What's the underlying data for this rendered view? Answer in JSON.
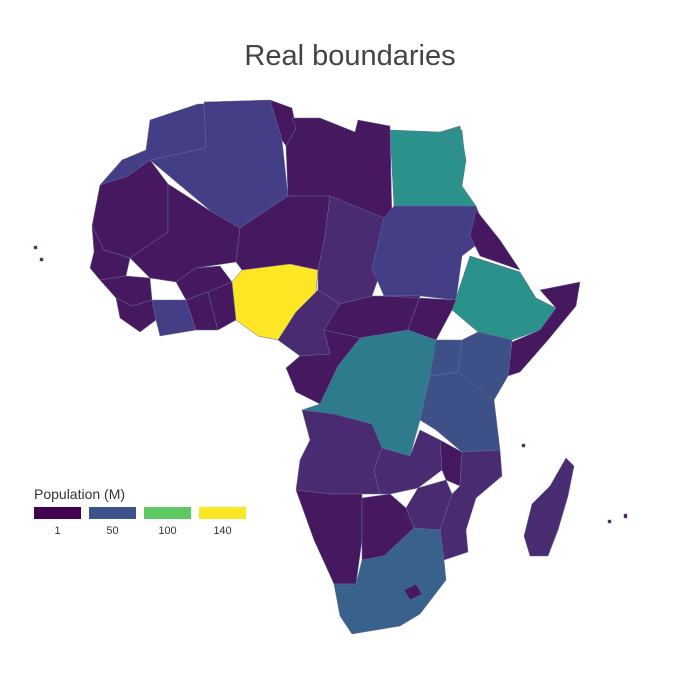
{
  "title": "Real boundaries",
  "legend": {
    "title": "Population (M)",
    "items": [
      {
        "label": "1",
        "color": "#440154"
      },
      {
        "label": "50",
        "color": "#3b528b"
      },
      {
        "label": "100",
        "color": "#5ec962"
      },
      {
        "label": "140",
        "color": "#fde725"
      }
    ]
  },
  "colors": {
    "c1": "#46185f",
    "c2": "#482b71",
    "c3": "#433e85",
    "c4": "#3e5088",
    "c5": "#38618c",
    "c6": "#2d7b8c",
    "c7": "#2a928a",
    "c8": "#fde725"
  }
}
